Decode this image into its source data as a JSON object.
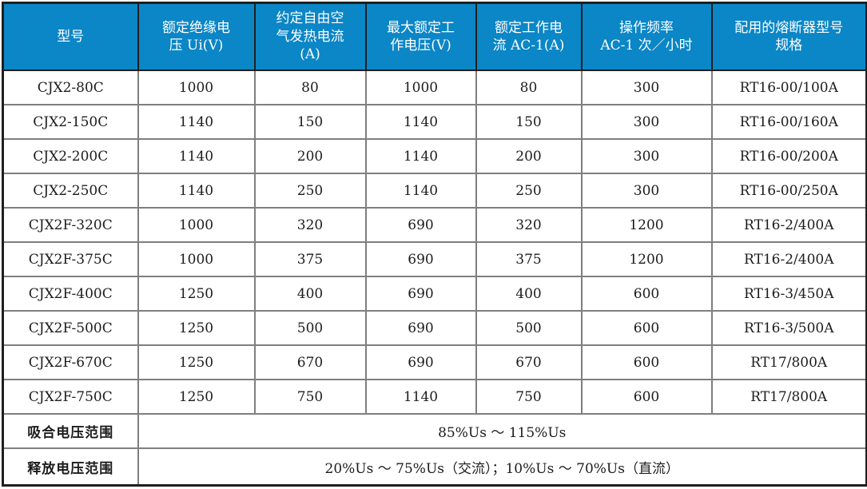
{
  "chart_data": {
    "type": "table",
    "columns": [
      "型号",
      "额定绝缘电\n压 Ui(V)",
      "约定自由空\n气发热电流\n(A)",
      "最大额定工\n作电压(V)",
      "额定工作电\n流 AC-1(A)",
      "操作频率\nAC-1 次／小时",
      "配用的熔断器型号\n规格"
    ],
    "rows": [
      [
        "CJX2-80C",
        "1000",
        "80",
        "1000",
        "80",
        "300",
        "RT16-00/100A"
      ],
      [
        "CJX2-150C",
        "1140",
        "150",
        "1140",
        "150",
        "300",
        "RT16-00/160A"
      ],
      [
        "CJX2-200C",
        "1140",
        "200",
        "1140",
        "200",
        "300",
        "RT16-00/200A"
      ],
      [
        "CJX2-250C",
        "1140",
        "250",
        "1140",
        "250",
        "300",
        "RT16-00/250A"
      ],
      [
        "CJX2F-320C",
        "1000",
        "320",
        "690",
        "320",
        "1200",
        "RT16-2/400A"
      ],
      [
        "CJX2F-375C",
        "1000",
        "375",
        "690",
        "375",
        "1200",
        "RT16-2/400A"
      ],
      [
        "CJX2F-400C",
        "1250",
        "400",
        "690",
        "400",
        "600",
        "RT16-3/450A"
      ],
      [
        "CJX2F-500C",
        "1250",
        "500",
        "690",
        "500",
        "600",
        "RT16-3/500A"
      ],
      [
        "CJX2F-670C",
        "1250",
        "670",
        "690",
        "670",
        "600",
        "RT17/800A"
      ],
      [
        "CJX2F-750C",
        "1250",
        "750",
        "1140",
        "750",
        "600",
        "RT17/800A"
      ]
    ],
    "footer_rows": [
      {
        "label": "吸合电压范围",
        "value": "85%Us ～ 115%Us"
      },
      {
        "label": "释放电压范围",
        "value": "20%Us ～ 75%Us（交流）；10%Us ～ 70%Us（直流）"
      }
    ]
  },
  "colors": {
    "header_bg": "#0b86c6",
    "header_text": "#ffffff",
    "body_text": "#1c1c1c",
    "grid_line": "#7f7f7f",
    "outer_line": "#1f1f1f"
  }
}
